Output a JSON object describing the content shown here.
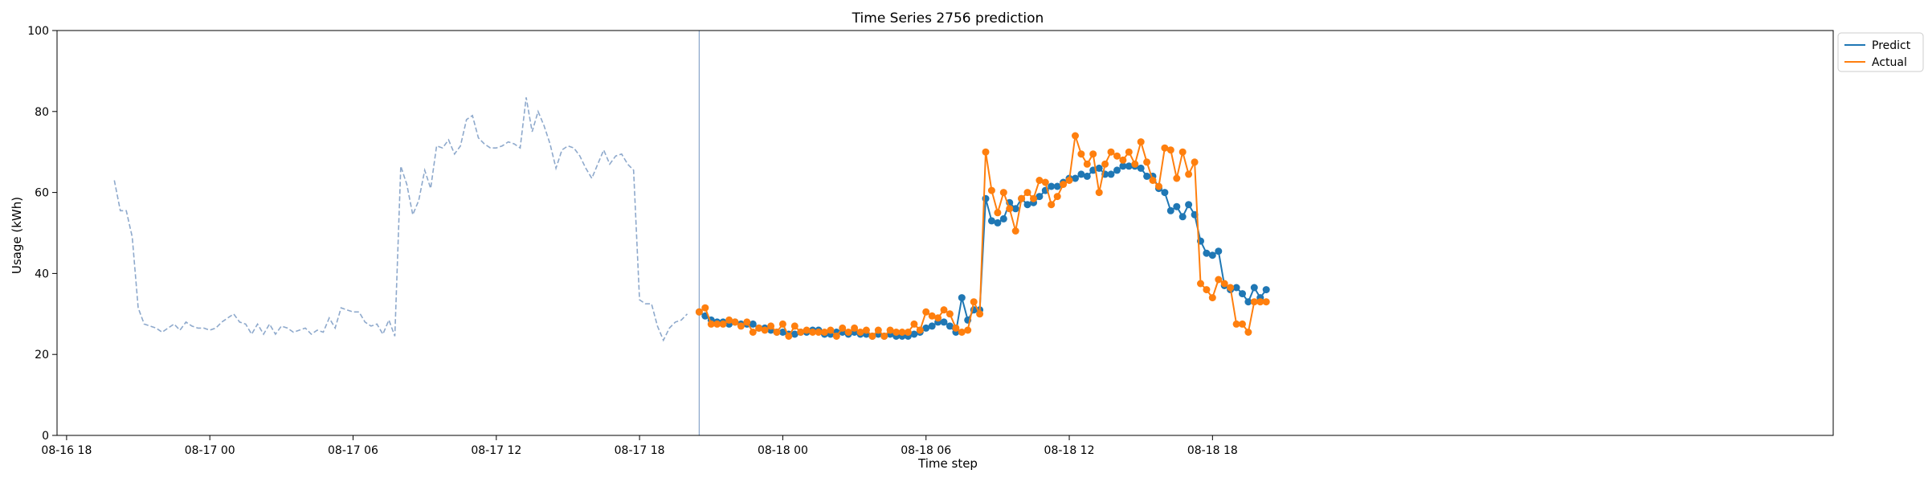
{
  "chart_data": {
    "type": "line",
    "title": "Time Series 2756 prediction",
    "xlabel": "Time step",
    "ylabel": "Usage (kWh)",
    "ylim": [
      0,
      100
    ],
    "yticks": [
      0,
      20,
      40,
      60,
      80,
      100
    ],
    "x_unit": "hours from 08-16 18:00",
    "xlim": [
      -0.4,
      74.0
    ],
    "xticks": [
      {
        "x": 0,
        "label": "08-16 18"
      },
      {
        "x": 6,
        "label": "08-17 00"
      },
      {
        "x": 12,
        "label": "08-17 06"
      },
      {
        "x": 18,
        "label": "08-17 12"
      },
      {
        "x": 24,
        "label": "08-17 18"
      },
      {
        "x": 30,
        "label": "08-18 00"
      },
      {
        "x": 36,
        "label": "08-18 06"
      },
      {
        "x": 42,
        "label": "08-18 12"
      },
      {
        "x": 48,
        "label": "08-18 18"
      }
    ],
    "forecast_start": 26.5,
    "grid": false,
    "legend": "top-right",
    "history": {
      "start": 2.0,
      "step": 0.25,
      "color": "#8ea9cc",
      "values": [
        63,
        55.5,
        55.5,
        49,
        31.5,
        27.5,
        27,
        26.5,
        25.5,
        26.5,
        27.5,
        26,
        28,
        27,
        26.5,
        26.5,
        26,
        26.5,
        28,
        29,
        30,
        28,
        27.5,
        25,
        27.5,
        25,
        27.5,
        25,
        27,
        26.5,
        25.5,
        26,
        26.5,
        25,
        26,
        25.5,
        29,
        26.5,
        31.5,
        31,
        30.5,
        30.5,
        28,
        27,
        27.5,
        25,
        28.5,
        24.5,
        66.5,
        62,
        54.5,
        58,
        65.5,
        61,
        71.5,
        71,
        73,
        69.5,
        71.5,
        78,
        79,
        73.5,
        72,
        71,
        71,
        71.5,
        72.5,
        72,
        71,
        83.5,
        75,
        80,
        76.5,
        72,
        66,
        70.5,
        71.5,
        71,
        69,
        66,
        63.5,
        67,
        70.5,
        67,
        69,
        69.5,
        67,
        65.5,
        33.5,
        32.5,
        32.5,
        27,
        23.5,
        26.5,
        28,
        28.5,
        30
      ]
    },
    "series": [
      {
        "name": "Predict",
        "color": "#1f77b4",
        "start": 26.5,
        "step": 0.25,
        "values": [
          30.5,
          29.5,
          28.5,
          28,
          28,
          27.5,
          28,
          27.5,
          27.5,
          27.5,
          26.5,
          26.5,
          26,
          25.5,
          25.5,
          25,
          25,
          25.5,
          25.5,
          26,
          26,
          25,
          25,
          25.5,
          25.5,
          25,
          25.5,
          25,
          25,
          24.5,
          25,
          24.5,
          25,
          24.5,
          24.5,
          24.5,
          25,
          25.5,
          26.5,
          27,
          28,
          28,
          27,
          25.5,
          34,
          28.5,
          31,
          31,
          58.5,
          53,
          52.5,
          53.5,
          57.5,
          56,
          58.5,
          57,
          57.5,
          59,
          60.5,
          61.5,
          61.5,
          62.5,
          63.5,
          63.5,
          64.5,
          64,
          65.5,
          66,
          64.5,
          64.5,
          65.5,
          66.5,
          66.5,
          66.5,
          66,
          64,
          64,
          61,
          60,
          55.5,
          56.5,
          54,
          57,
          54.5,
          48,
          45,
          44.5,
          45.5,
          37,
          36,
          36.5,
          35,
          33,
          36.5,
          34,
          36
        ]
      },
      {
        "name": "Actual",
        "color": "#ff7f0e",
        "start": 26.5,
        "step": 0.25,
        "values": [
          30.5,
          31.5,
          27.5,
          27.5,
          27.5,
          28.5,
          28,
          27,
          28,
          25.5,
          26.5,
          26,
          27,
          25.5,
          27.5,
          24.5,
          27,
          25.5,
          26,
          25.5,
          25.5,
          25.5,
          26,
          24.5,
          26.5,
          25.5,
          26.5,
          25.5,
          26,
          24.5,
          26,
          24.5,
          26,
          25.5,
          25.5,
          25.5,
          27.5,
          26,
          30.5,
          29.5,
          29,
          31,
          30,
          26.5,
          25.5,
          26,
          33,
          30,
          70,
          60.5,
          55,
          60,
          56,
          50.5,
          58.5,
          60,
          58.5,
          63,
          62.5,
          57,
          59,
          62,
          63,
          74,
          69.5,
          67,
          69.5,
          60,
          67,
          70,
          69,
          68,
          70,
          67,
          72.5,
          67.5,
          63,
          61.5,
          71,
          70.5,
          63.5,
          70,
          64.5,
          67.5,
          37.5,
          36,
          34,
          38.5,
          37.5,
          36.5,
          27.5,
          27.5,
          25.5,
          33,
          33,
          33
        ]
      }
    ]
  }
}
